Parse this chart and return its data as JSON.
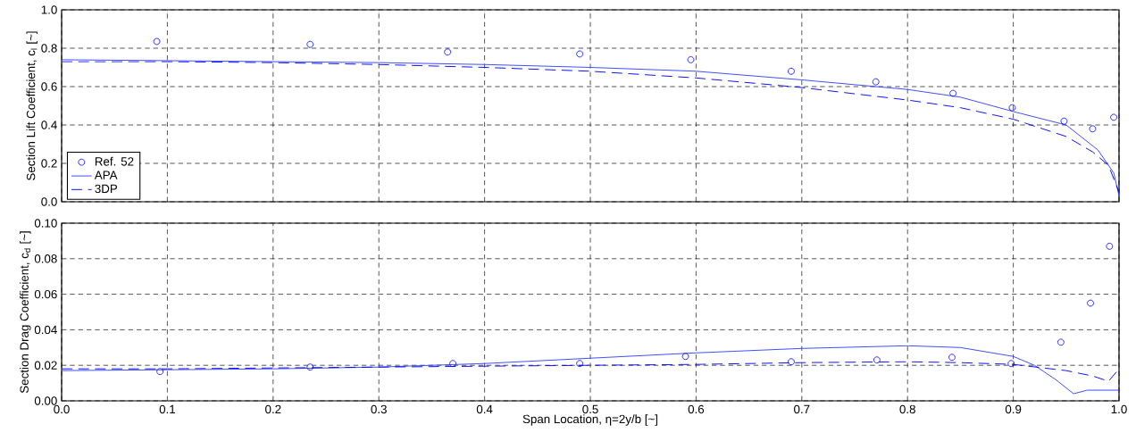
{
  "chart_data": [
    {
      "type": "line",
      "ylabel": "Section Lift Coefficient, c$_{l}$ [~]",
      "xlim": [
        0,
        1
      ],
      "ylim": [
        0,
        1
      ],
      "xticks": [
        0,
        0.1,
        0.2,
        0.3,
        0.4,
        0.5,
        0.6,
        0.7,
        0.8,
        0.9,
        1
      ],
      "yticks": [
        {
          "value": 0,
          "label": "0.0"
        },
        0.2,
        0.4,
        0.6,
        0.8,
        {
          "value": 1,
          "label": "1.0"
        }
      ],
      "tick_labels": "y",
      "grid": true,
      "legend": "bottom left",
      "series": [
        {
          "name": "Ref. 52",
          "type": "scatter",
          "marker": "circle",
          "color": "#0000ff",
          "x": [
            0.09,
            0.235,
            0.365,
            0.49,
            0.595,
            0.69,
            0.77,
            0.843,
            0.899,
            0.948,
            0.975,
            0.995
          ],
          "values": [
            0.835,
            0.82,
            0.78,
            0.77,
            0.74,
            0.68,
            0.625,
            0.565,
            0.49,
            0.42,
            0.38,
            0.44
          ]
        },
        {
          "name": "APA",
          "type": "line",
          "line_style": "solid",
          "color": "#3344ff",
          "x": [
            0,
            0.1,
            0.2,
            0.3,
            0.4,
            0.5,
            0.6,
            0.7,
            0.8,
            0.85,
            0.9,
            0.95,
            0.98,
            0.995,
            1.0
          ],
          "values": [
            0.74,
            0.735,
            0.73,
            0.725,
            0.715,
            0.7,
            0.68,
            0.635,
            0.585,
            0.545,
            0.47,
            0.4,
            0.27,
            0.15,
            0.03
          ]
        },
        {
          "name": "3DP",
          "type": "line",
          "line_style": "dashed",
          "color": "#0000ff",
          "x": [
            0,
            0.1,
            0.2,
            0.3,
            0.4,
            0.5,
            0.6,
            0.7,
            0.8,
            0.85,
            0.9,
            0.95,
            0.975,
            0.99,
            1.0
          ],
          "values": [
            0.73,
            0.73,
            0.725,
            0.715,
            0.7,
            0.68,
            0.645,
            0.595,
            0.53,
            0.49,
            0.43,
            0.34,
            0.26,
            0.19,
            0.05
          ]
        }
      ]
    },
    {
      "type": "line",
      "xlabel": "Span Location, η=2y/b [~]",
      "ylabel": "Section Drag Coefficient, c$_{d}$ [~]",
      "xlim": [
        0,
        1
      ],
      "ylim": [
        0,
        0.1
      ],
      "xticks": [
        {
          "value": 0,
          "label": "0.0"
        },
        0.1,
        0.2,
        0.3,
        0.4,
        0.5,
        0.6,
        0.7,
        0.8,
        0.9,
        {
          "value": 1,
          "label": "1.0"
        }
      ],
      "yticks": [
        {
          "value": 0,
          "label": "0.00"
        },
        0.02,
        0.04,
        0.06,
        0.08,
        {
          "value": 0.1,
          "label": "0.10"
        }
      ],
      "grid": true,
      "series": [
        {
          "type": "scatter",
          "marker": "circle",
          "color": "#0000ff",
          "x": [
            0.093,
            0.235,
            0.37,
            0.49,
            0.59,
            0.69,
            0.771,
            0.842,
            0.898,
            0.945,
            0.973,
            0.991
          ],
          "values": [
            0.0165,
            0.019,
            0.021,
            0.021,
            0.025,
            0.022,
            0.023,
            0.0245,
            0.021,
            0.033,
            0.055,
            0.087
          ]
        },
        {
          "type": "line",
          "line_style": "solid",
          "color": "#3344ff",
          "x": [
            0,
            0.1,
            0.2,
            0.3,
            0.4,
            0.5,
            0.6,
            0.7,
            0.8,
            0.85,
            0.9,
            0.92,
            0.94,
            0.957,
            0.97,
            1.0
          ],
          "values": [
            0.017,
            0.0175,
            0.018,
            0.019,
            0.021,
            0.024,
            0.027,
            0.0295,
            0.031,
            0.03,
            0.025,
            0.02,
            0.012,
            0.004,
            0.006,
            0.006
          ]
        },
        {
          "type": "line",
          "line_style": "dashed",
          "color": "#0000ff",
          "x": [
            0,
            0.1,
            0.2,
            0.3,
            0.4,
            0.5,
            0.6,
            0.7,
            0.8,
            0.85,
            0.9,
            0.95,
            0.975,
            0.99,
            1.0
          ],
          "values": [
            0.018,
            0.018,
            0.0185,
            0.019,
            0.0195,
            0.02,
            0.0205,
            0.0215,
            0.022,
            0.0215,
            0.0205,
            0.017,
            0.014,
            0.011,
            0.018
          ]
        }
      ]
    }
  ]
}
